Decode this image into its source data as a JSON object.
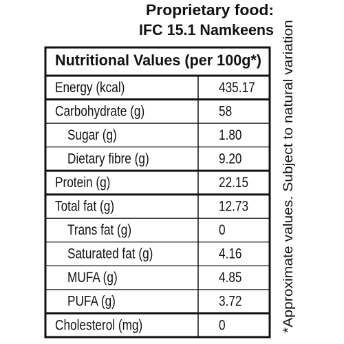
{
  "header": {
    "line1": "Proprietary food:",
    "line2": "IFC 15.1 Namkeens"
  },
  "table": {
    "title": "Nutritional Values (per 100g*)",
    "groups": [
      {
        "rows": [
          [
            "Energy (kcal)",
            "435.17"
          ]
        ]
      },
      {
        "rows": [
          [
            "Carbohydrate (g)",
            "58"
          ],
          [
            "Sugar (g)",
            "1.80"
          ],
          [
            "Dietary fibre (g)",
            "9.20"
          ]
        ]
      },
      {
        "rows": [
          [
            "Protein (g)",
            "22.15"
          ]
        ]
      },
      {
        "rows": [
          [
            "Total fat (g)",
            "12.73"
          ],
          [
            "Trans fat (g)",
            "0"
          ],
          [
            "Saturated fat (g)",
            "4.16"
          ],
          [
            "MUFA (g)",
            "4.85"
          ],
          [
            "PUFA (g)",
            "3.72"
          ]
        ]
      },
      {
        "rows": [
          [
            "Cholesterol (mg)",
            "0"
          ]
        ]
      }
    ]
  },
  "footnote": "*Approximate values. Subject to natural variation"
}
